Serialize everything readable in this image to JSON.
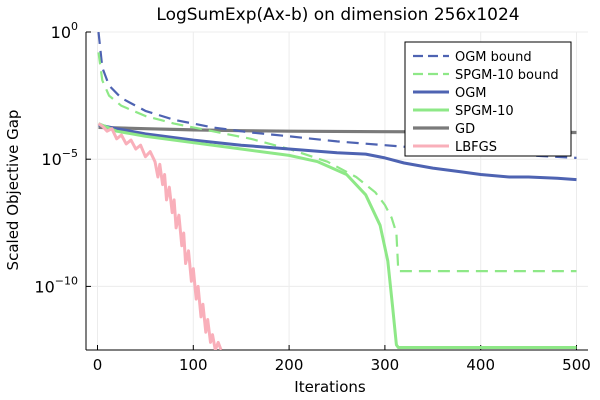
{
  "chart_data": {
    "type": "line",
    "title": "LogSumExp(Ax-b) on dimension 256x1024",
    "xlabel": "Iterations",
    "ylabel": "Scaled Objective Gap",
    "xlim": [
      -12,
      512
    ],
    "ylim_log10": [
      -12.5,
      0
    ],
    "y_scale": "log",
    "grid": true,
    "legend_position": "top-right",
    "x_ticks": [
      {
        "value": 0,
        "label": "0"
      },
      {
        "value": 100,
        "label": "100"
      },
      {
        "value": 200,
        "label": "200"
      },
      {
        "value": 300,
        "label": "300"
      },
      {
        "value": 400,
        "label": "400"
      },
      {
        "value": 500,
        "label": "500"
      }
    ],
    "y_ticks": [
      {
        "exp": 0,
        "base": "10",
        "power": "0"
      },
      {
        "exp": -5,
        "base": "10",
        "power": "−5"
      },
      {
        "exp": -10,
        "base": "10",
        "power": "−10"
      }
    ],
    "series": [
      {
        "name": "OGM bound",
        "color": "#4e63b2",
        "style": "dashed",
        "width": 2.2,
        "points": [
          [
            1,
            0
          ],
          [
            5,
            -1.4
          ],
          [
            12,
            -2.1
          ],
          [
            25,
            -2.6
          ],
          [
            50,
            -3.1
          ],
          [
            80,
            -3.45
          ],
          [
            120,
            -3.75
          ],
          [
            160,
            -3.95
          ],
          [
            200,
            -4.1
          ],
          [
            250,
            -4.3
          ],
          [
            300,
            -4.45
          ],
          [
            350,
            -4.6
          ],
          [
            400,
            -4.75
          ],
          [
            450,
            -4.85
          ],
          [
            500,
            -4.95
          ]
        ]
      },
      {
        "name": "SPGM-10 bound",
        "color": "#8ee887",
        "style": "dashed",
        "width": 2.2,
        "points": [
          [
            1,
            -0.8
          ],
          [
            5,
            -1.9
          ],
          [
            12,
            -2.5
          ],
          [
            25,
            -2.9
          ],
          [
            50,
            -3.3
          ],
          [
            80,
            -3.6
          ],
          [
            120,
            -3.9
          ],
          [
            160,
            -4.2
          ],
          [
            200,
            -4.6
          ],
          [
            240,
            -5.1
          ],
          [
            270,
            -5.7
          ],
          [
            290,
            -6.3
          ],
          [
            300,
            -6.8
          ],
          [
            307,
            -7.3
          ],
          [
            312,
            -7.9
          ],
          [
            314,
            -9.4
          ],
          [
            500,
            -9.4
          ]
        ]
      },
      {
        "name": "OGM",
        "color": "#4e63b2",
        "style": "solid",
        "width": 3,
        "points": [
          [
            1,
            -3.65
          ],
          [
            20,
            -3.8
          ],
          [
            50,
            -4.0
          ],
          [
            100,
            -4.25
          ],
          [
            150,
            -4.45
          ],
          [
            200,
            -4.6
          ],
          [
            250,
            -4.75
          ],
          [
            280,
            -4.8
          ],
          [
            300,
            -4.95
          ],
          [
            320,
            -5.15
          ],
          [
            350,
            -5.35
          ],
          [
            380,
            -5.5
          ],
          [
            400,
            -5.6
          ],
          [
            430,
            -5.7
          ],
          [
            450,
            -5.7
          ],
          [
            480,
            -5.75
          ],
          [
            500,
            -5.8
          ]
        ]
      },
      {
        "name": "SPGM-10",
        "color": "#8ee887",
        "style": "solid",
        "width": 3,
        "points": [
          [
            1,
            -3.6
          ],
          [
            20,
            -3.9
          ],
          [
            50,
            -4.1
          ],
          [
            100,
            -4.35
          ],
          [
            150,
            -4.6
          ],
          [
            200,
            -4.85
          ],
          [
            230,
            -5.1
          ],
          [
            260,
            -5.6
          ],
          [
            280,
            -6.4
          ],
          [
            295,
            -7.6
          ],
          [
            303,
            -9.0
          ],
          [
            308,
            -10.8
          ],
          [
            312,
            -12.3
          ],
          [
            314,
            -12.4
          ],
          [
            500,
            -12.4
          ]
        ]
      },
      {
        "name": "GD",
        "color": "#7a7a7a",
        "style": "solid",
        "width": 3.2,
        "points": [
          [
            1,
            -3.75
          ],
          [
            50,
            -3.8
          ],
          [
            100,
            -3.85
          ],
          [
            150,
            -3.88
          ],
          [
            200,
            -3.9
          ],
          [
            300,
            -3.92
          ],
          [
            400,
            -3.93
          ],
          [
            500,
            -3.95
          ]
        ]
      },
      {
        "name": "LBFGS",
        "color": "#f9afba",
        "style": "solid",
        "width": 3,
        "points": [
          [
            1,
            -3.6
          ],
          [
            5,
            -3.7
          ],
          [
            10,
            -3.9
          ],
          [
            15,
            -3.8
          ],
          [
            20,
            -4.2
          ],
          [
            25,
            -4.05
          ],
          [
            30,
            -4.4
          ],
          [
            35,
            -4.25
          ],
          [
            40,
            -4.6
          ],
          [
            45,
            -4.45
          ],
          [
            50,
            -4.9
          ],
          [
            55,
            -4.7
          ],
          [
            60,
            -5.1
          ],
          [
            63,
            -5.7
          ],
          [
            65,
            -5.2
          ],
          [
            68,
            -6.0
          ],
          [
            70,
            -5.6
          ],
          [
            72,
            -6.6
          ],
          [
            75,
            -6.1
          ],
          [
            78,
            -7.1
          ],
          [
            80,
            -6.6
          ],
          [
            82,
            -7.7
          ],
          [
            85,
            -7.2
          ],
          [
            88,
            -8.4
          ],
          [
            90,
            -7.9
          ],
          [
            92,
            -9.1
          ],
          [
            95,
            -8.6
          ],
          [
            98,
            -9.8
          ],
          [
            100,
            -9.3
          ],
          [
            103,
            -10.5
          ],
          [
            105,
            -10.0
          ],
          [
            108,
            -11.2
          ],
          [
            110,
            -10.7
          ],
          [
            113,
            -11.8
          ],
          [
            115,
            -11.3
          ],
          [
            118,
            -12.2
          ],
          [
            120,
            -11.9
          ],
          [
            123,
            -12.5
          ],
          [
            126,
            -12.2
          ],
          [
            129,
            -12.5
          ]
        ]
      }
    ]
  }
}
